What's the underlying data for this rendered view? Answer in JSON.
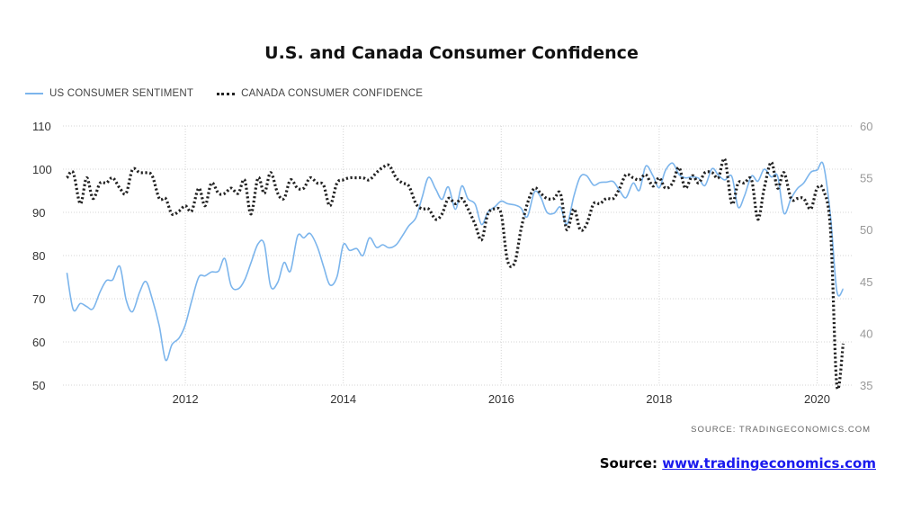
{
  "page": {
    "title": "U.S. and Canada Consumer Confidence",
    "source_small": "SOURCE:  TRADINGECONOMICS.COM",
    "source_prefix": "Source: ",
    "source_link": "www.tradingeconomics.com"
  },
  "chart_data": {
    "type": "line",
    "title": "U.S. and Canada Consumer Confidence",
    "xlabel": "",
    "ylabel": "",
    "x_ticks": [
      "2012",
      "2014",
      "2016",
      "2018",
      "2020"
    ],
    "x_tick_values": [
      2012,
      2014,
      2016,
      2018,
      2020
    ],
    "xlim": [
      2010.45,
      2020.45
    ],
    "y_left": {
      "lim": [
        50,
        110
      ],
      "ticks": [
        "110",
        "100",
        "90",
        "80",
        "70",
        "60",
        "50"
      ]
    },
    "y_right": {
      "lim": [
        35,
        60
      ],
      "ticks": [
        "60",
        "55",
        "50",
        "45",
        "40",
        "35"
      ]
    },
    "grid": "dotted",
    "legend_position": "top-left",
    "series": [
      {
        "name": "US CONSUMER SENTIMENT",
        "axis": "left",
        "style": "solid",
        "color": "#7cb5ec",
        "points": [
          [
            2010.5,
            76
          ],
          [
            2010.58,
            67.5
          ],
          [
            2010.67,
            68.9
          ],
          [
            2010.75,
            68.2
          ],
          [
            2010.83,
            67.7
          ],
          [
            2010.92,
            71.6
          ],
          [
            2011.0,
            74.2
          ],
          [
            2011.08,
            74.4
          ],
          [
            2011.17,
            77.5
          ],
          [
            2011.25,
            69.8
          ],
          [
            2011.33,
            67
          ],
          [
            2011.42,
            71.5
          ],
          [
            2011.5,
            74
          ],
          [
            2011.58,
            70
          ],
          [
            2011.67,
            63.7
          ],
          [
            2011.75,
            55.8
          ],
          [
            2011.83,
            59.4
          ],
          [
            2011.92,
            60.9
          ],
          [
            2012.0,
            64
          ],
          [
            2012.08,
            69.5
          ],
          [
            2012.17,
            75
          ],
          [
            2012.25,
            75.3
          ],
          [
            2012.33,
            76.2
          ],
          [
            2012.42,
            76.4
          ],
          [
            2012.5,
            79.3
          ],
          [
            2012.58,
            73
          ],
          [
            2012.67,
            72.3
          ],
          [
            2012.75,
            74.3
          ],
          [
            2012.83,
            78.3
          ],
          [
            2012.92,
            82.7
          ],
          [
            2013.0,
            82.6
          ],
          [
            2013.08,
            72.9
          ],
          [
            2013.17,
            73.8
          ],
          [
            2013.25,
            78.4
          ],
          [
            2013.33,
            76.4
          ],
          [
            2013.42,
            84.5
          ],
          [
            2013.5,
            84.1
          ],
          [
            2013.58,
            85.1
          ],
          [
            2013.67,
            82.1
          ],
          [
            2013.75,
            77.5
          ],
          [
            2013.83,
            73.2
          ],
          [
            2013.92,
            75.1
          ],
          [
            2014.0,
            82.5
          ],
          [
            2014.08,
            81.2
          ],
          [
            2014.17,
            81.6
          ],
          [
            2014.25,
            80
          ],
          [
            2014.33,
            84.1
          ],
          [
            2014.42,
            81.9
          ],
          [
            2014.5,
            82.5
          ],
          [
            2014.58,
            81.8
          ],
          [
            2014.67,
            82.5
          ],
          [
            2014.75,
            84.6
          ],
          [
            2014.83,
            86.9
          ],
          [
            2014.92,
            88.8
          ],
          [
            2015.0,
            93.6
          ],
          [
            2015.08,
            98.1
          ],
          [
            2015.17,
            95.4
          ],
          [
            2015.25,
            93
          ],
          [
            2015.33,
            95.9
          ],
          [
            2015.42,
            90.7
          ],
          [
            2015.5,
            96.1
          ],
          [
            2015.58,
            93.1
          ],
          [
            2015.67,
            91.9
          ],
          [
            2015.75,
            87.2
          ],
          [
            2015.83,
            90
          ],
          [
            2015.92,
            91.3
          ],
          [
            2016.0,
            92.6
          ],
          [
            2016.08,
            92
          ],
          [
            2016.17,
            91.7
          ],
          [
            2016.25,
            91
          ],
          [
            2016.33,
            89
          ],
          [
            2016.42,
            94.7
          ],
          [
            2016.5,
            93.5
          ],
          [
            2016.58,
            90
          ],
          [
            2016.67,
            89.8
          ],
          [
            2016.75,
            91.2
          ],
          [
            2016.83,
            87.2
          ],
          [
            2016.92,
            93.8
          ],
          [
            2017.0,
            98.2
          ],
          [
            2017.08,
            98.5
          ],
          [
            2017.17,
            96.3
          ],
          [
            2017.25,
            96.9
          ],
          [
            2017.33,
            97
          ],
          [
            2017.42,
            97.1
          ],
          [
            2017.5,
            95
          ],
          [
            2017.58,
            93.4
          ],
          [
            2017.67,
            96.8
          ],
          [
            2017.75,
            95.1
          ],
          [
            2017.83,
            100.7
          ],
          [
            2017.92,
            98.5
          ],
          [
            2018.0,
            95.7
          ],
          [
            2018.08,
            99.7
          ],
          [
            2018.17,
            101.4
          ],
          [
            2018.25,
            98.8
          ],
          [
            2018.33,
            98
          ],
          [
            2018.42,
            98.2
          ],
          [
            2018.5,
            97.9
          ],
          [
            2018.58,
            96.2
          ],
          [
            2018.67,
            100.1
          ],
          [
            2018.75,
            98.6
          ],
          [
            2018.83,
            97.5
          ],
          [
            2018.92,
            98.3
          ],
          [
            2019.0,
            91.2
          ],
          [
            2019.08,
            93.8
          ],
          [
            2019.17,
            98.4
          ],
          [
            2019.25,
            97.2
          ],
          [
            2019.33,
            100
          ],
          [
            2019.42,
            98.2
          ],
          [
            2019.5,
            98.4
          ],
          [
            2019.58,
            89.8
          ],
          [
            2019.67,
            93.2
          ],
          [
            2019.75,
            95.5
          ],
          [
            2019.83,
            96.8
          ],
          [
            2019.92,
            99.3
          ],
          [
            2020.0,
            99.8
          ],
          [
            2020.08,
            101
          ],
          [
            2020.17,
            89.1
          ],
          [
            2020.25,
            71.8
          ],
          [
            2020.33,
            72.3
          ]
        ]
      },
      {
        "name": "CANADA CONSUMER CONFIDENCE",
        "axis": "right",
        "style": "dotted",
        "color": "#222222",
        "points": [
          [
            2010.5,
            55
          ],
          [
            2010.58,
            55.5
          ],
          [
            2010.67,
            52.5
          ],
          [
            2010.75,
            55
          ],
          [
            2010.83,
            53
          ],
          [
            2010.92,
            54.5
          ],
          [
            2011.0,
            54.5
          ],
          [
            2011.08,
            55
          ],
          [
            2011.17,
            54
          ],
          [
            2011.25,
            53.5
          ],
          [
            2011.33,
            55.8
          ],
          [
            2011.42,
            55.5
          ],
          [
            2011.5,
            55.5
          ],
          [
            2011.58,
            55.2
          ],
          [
            2011.67,
            53
          ],
          [
            2011.75,
            53
          ],
          [
            2011.83,
            51.5
          ],
          [
            2011.92,
            51.8
          ],
          [
            2012.0,
            52.3
          ],
          [
            2012.08,
            51.8
          ],
          [
            2012.17,
            54
          ],
          [
            2012.25,
            52.3
          ],
          [
            2012.33,
            54.5
          ],
          [
            2012.42,
            53.5
          ],
          [
            2012.5,
            53.5
          ],
          [
            2012.58,
            54
          ],
          [
            2012.67,
            53.5
          ],
          [
            2012.75,
            54.8
          ],
          [
            2012.83,
            51.5
          ],
          [
            2012.92,
            55
          ],
          [
            2013.0,
            53.5
          ],
          [
            2013.08,
            55.5
          ],
          [
            2013.17,
            53.5
          ],
          [
            2013.25,
            53
          ],
          [
            2013.33,
            54.8
          ],
          [
            2013.42,
            54
          ],
          [
            2013.5,
            54
          ],
          [
            2013.58,
            55
          ],
          [
            2013.67,
            54.5
          ],
          [
            2013.75,
            54.3
          ],
          [
            2013.83,
            52.3
          ],
          [
            2013.92,
            54.5
          ],
          [
            2014.0,
            54.8
          ],
          [
            2014.08,
            55
          ],
          [
            2014.17,
            55
          ],
          [
            2014.25,
            55
          ],
          [
            2014.33,
            54.8
          ],
          [
            2014.42,
            55.5
          ],
          [
            2014.5,
            56
          ],
          [
            2014.58,
            56.2
          ],
          [
            2014.67,
            55
          ],
          [
            2014.75,
            54.5
          ],
          [
            2014.83,
            54.2
          ],
          [
            2014.92,
            52.5
          ],
          [
            2015.0,
            52
          ],
          [
            2015.08,
            52
          ],
          [
            2015.17,
            51
          ],
          [
            2015.25,
            51.5
          ],
          [
            2015.33,
            53
          ],
          [
            2015.42,
            52.5
          ],
          [
            2015.5,
            53
          ],
          [
            2015.58,
            52
          ],
          [
            2015.67,
            50.5
          ],
          [
            2015.75,
            49
          ],
          [
            2015.83,
            51.5
          ],
          [
            2015.92,
            52
          ],
          [
            2016.0,
            51.5
          ],
          [
            2016.08,
            47
          ],
          [
            2016.17,
            46.8
          ],
          [
            2016.25,
            50
          ],
          [
            2016.33,
            52.5
          ],
          [
            2016.42,
            54
          ],
          [
            2016.5,
            53.5
          ],
          [
            2016.58,
            53
          ],
          [
            2016.67,
            53
          ],
          [
            2016.75,
            53.5
          ],
          [
            2016.83,
            50
          ],
          [
            2016.92,
            52
          ],
          [
            2017.0,
            50
          ],
          [
            2017.08,
            50.5
          ],
          [
            2017.17,
            52.5
          ],
          [
            2017.25,
            52.5
          ],
          [
            2017.33,
            53
          ],
          [
            2017.42,
            53
          ],
          [
            2017.5,
            54
          ],
          [
            2017.58,
            55.3
          ],
          [
            2017.67,
            55
          ],
          [
            2017.75,
            54.8
          ],
          [
            2017.83,
            55.3
          ],
          [
            2017.92,
            54.2
          ],
          [
            2018.0,
            55
          ],
          [
            2018.08,
            54
          ],
          [
            2018.17,
            54.5
          ],
          [
            2018.25,
            56
          ],
          [
            2018.33,
            54
          ],
          [
            2018.42,
            55.2
          ],
          [
            2018.5,
            54.5
          ],
          [
            2018.58,
            55.5
          ],
          [
            2018.67,
            55.5
          ],
          [
            2018.75,
            55
          ],
          [
            2018.83,
            56.8
          ],
          [
            2018.92,
            52.5
          ],
          [
            2019.0,
            54.5
          ],
          [
            2019.08,
            54.5
          ],
          [
            2019.17,
            54.8
          ],
          [
            2019.25,
            51
          ],
          [
            2019.33,
            54
          ],
          [
            2019.42,
            56.5
          ],
          [
            2019.5,
            54
          ],
          [
            2019.58,
            55.5
          ],
          [
            2019.67,
            53
          ],
          [
            2019.75,
            53
          ],
          [
            2019.83,
            53
          ],
          [
            2019.92,
            52
          ],
          [
            2020.0,
            54
          ],
          [
            2020.08,
            53.8
          ],
          [
            2020.17,
            50
          ],
          [
            2020.25,
            35
          ],
          [
            2020.33,
            39
          ]
        ]
      }
    ]
  }
}
